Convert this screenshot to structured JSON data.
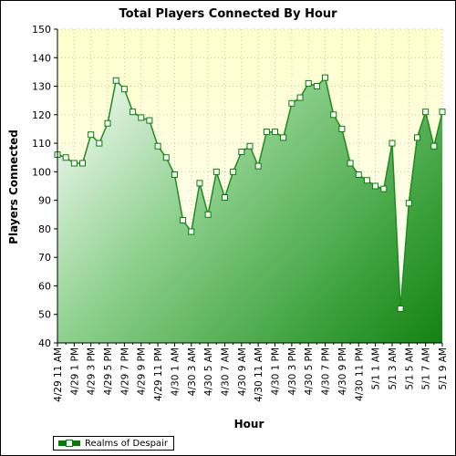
{
  "chart_data": {
    "type": "area",
    "title": "Total Players Connected By Hour",
    "xlabel": "Hour",
    "ylabel": "Players Connected",
    "ylim": [
      40,
      150
    ],
    "yticks": [
      40,
      50,
      60,
      70,
      80,
      90,
      100,
      110,
      120,
      130,
      140,
      150
    ],
    "grid": true,
    "legend_position": "bottom-left",
    "x_tick_labels": [
      "4/29 11 AM",
      "4/29 1 PM",
      "4/29 3 PM",
      "4/29 5 PM",
      "4/29 7 PM",
      "4/29 9 PM",
      "4/29 11 PM",
      "4/30 1 AM",
      "4/30 3 AM",
      "4/30 5 AM",
      "4/30 7 AM",
      "4/30 9 AM",
      "4/30 11 AM",
      "4/30 1 PM",
      "4/30 3 PM",
      "4/30 5 PM",
      "4/30 7 PM",
      "4/30 9 PM",
      "4/30 11 PM",
      "5/1 1 AM",
      "5/1 3 AM",
      "5/1 5 AM",
      "5/1 7 AM",
      "5/1 9 AM"
    ],
    "series": [
      {
        "name": "Realms of Despair",
        "color": "#008000",
        "values": [
          106,
          105,
          103,
          103,
          113,
          110,
          117,
          132,
          129,
          121,
          119,
          118,
          109,
          105,
          99,
          83,
          79,
          96,
          85,
          100,
          91,
          100,
          107,
          109,
          102,
          114,
          114,
          112,
          124,
          126,
          131,
          130,
          133,
          120,
          115,
          103,
          99,
          97,
          95,
          94,
          110,
          52,
          89,
          112,
          121,
          109,
          121
        ]
      }
    ]
  }
}
